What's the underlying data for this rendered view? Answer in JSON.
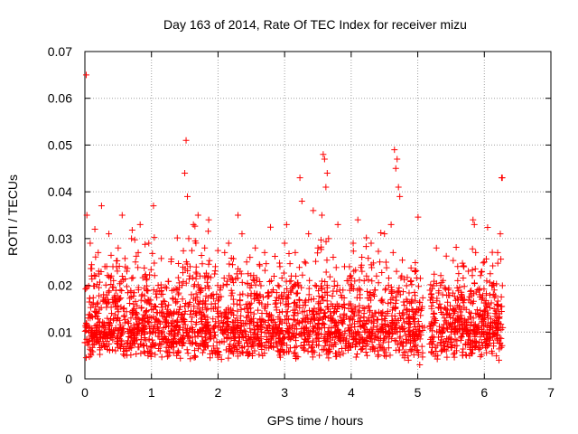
{
  "colors": {
    "series": "#ff0000",
    "axis": "#000000",
    "grid": "#a0a0a0",
    "background": "#ffffff"
  },
  "chart_data": {
    "type": "scatter",
    "title": "Day 163 of 2014, Rate Of TEC Index for receiver mizu",
    "xlabel": "GPS time / hours",
    "ylabel": "ROTI / TECUs",
    "xlim": [
      0,
      7
    ],
    "ylim": [
      0,
      0.07
    ],
    "x_ticks": [
      "0",
      "1",
      "2",
      "3",
      "4",
      "5",
      "6",
      "7"
    ],
    "y_ticks": [
      "0",
      "0.01",
      "0.02",
      "0.03",
      "0.04",
      "0.05",
      "0.06",
      "0.07"
    ],
    "x_tick_values": [
      0,
      1,
      2,
      3,
      4,
      5,
      6,
      7
    ],
    "y_tick_values": [
      0,
      0.01,
      0.02,
      0.03,
      0.04,
      0.05,
      0.06,
      0.07
    ],
    "grid": true,
    "marker": "+",
    "series": [
      {
        "name": "ROTI",
        "points": [
          [
            0.02,
            0.065
          ],
          [
            0.03,
            0.035
          ],
          [
            0.05,
            0.013
          ],
          [
            0.08,
            0.029
          ],
          [
            0.1,
            0.022
          ],
          [
            0.12,
            0.009
          ],
          [
            0.15,
            0.032
          ],
          [
            0.18,
            0.016
          ],
          [
            0.2,
            0.027
          ],
          [
            0.22,
            0.011
          ],
          [
            0.25,
            0.037
          ],
          [
            0.28,
            0.018
          ],
          [
            0.3,
            0.024
          ],
          [
            0.33,
            0.008
          ],
          [
            0.36,
            0.031
          ],
          [
            0.4,
            0.014
          ],
          [
            0.43,
            0.021
          ],
          [
            0.46,
            0.006
          ],
          [
            0.5,
            0.028
          ],
          [
            0.53,
            0.019
          ],
          [
            0.56,
            0.035
          ],
          [
            0.6,
            0.012
          ],
          [
            0.63,
            0.023
          ],
          [
            0.66,
            0.009
          ],
          [
            0.7,
            0.03
          ],
          [
            0.73,
            0.016
          ],
          [
            0.76,
            0.025
          ],
          [
            0.8,
            0.011
          ],
          [
            0.83,
            0.033
          ],
          [
            0.86,
            0.018
          ],
          [
            0.9,
            0.022
          ],
          [
            0.93,
            0.007
          ],
          [
            0.96,
            0.029
          ],
          [
            1.0,
            0.013
          ],
          [
            1.03,
            0.037
          ],
          [
            1.06,
            0.01
          ],
          [
            1.1,
            0.02
          ],
          [
            1.13,
            0.006
          ],
          [
            1.16,
            0.016
          ],
          [
            1.2,
            0.009
          ],
          [
            1.23,
            0.014
          ],
          [
            1.26,
            0.005
          ],
          [
            1.3,
            0.012
          ],
          [
            1.33,
            0.008
          ],
          [
            1.36,
            0.017
          ],
          [
            1.4,
            0.006
          ],
          [
            1.43,
            0.011
          ],
          [
            1.46,
            0.02
          ],
          [
            1.5,
            0.044
          ],
          [
            1.52,
            0.051
          ],
          [
            1.54,
            0.039
          ],
          [
            1.56,
            0.03
          ],
          [
            1.58,
            0.024
          ],
          [
            1.6,
            0.018
          ],
          [
            1.63,
            0.033
          ],
          [
            1.66,
            0.014
          ],
          [
            1.7,
            0.035
          ],
          [
            1.73,
            0.022
          ],
          [
            1.76,
            0.009
          ],
          [
            1.8,
            0.028
          ],
          [
            1.83,
            0.012
          ],
          [
            1.86,
            0.034
          ],
          [
            1.9,
            0.016
          ],
          [
            1.93,
            0.007
          ],
          [
            1.96,
            0.024
          ],
          [
            2.0,
            0.011
          ],
          [
            2.03,
            0.019
          ],
          [
            2.06,
            0.008
          ],
          [
            2.1,
            0.027
          ],
          [
            2.13,
            0.013
          ],
          [
            2.16,
            0.029
          ],
          [
            2.2,
            0.006
          ],
          [
            2.23,
            0.017
          ],
          [
            2.26,
            0.01
          ],
          [
            2.3,
            0.035
          ],
          [
            2.33,
            0.023
          ],
          [
            2.36,
            0.031
          ],
          [
            2.4,
            0.015
          ],
          [
            2.43,
            0.025
          ],
          [
            2.46,
            0.009
          ],
          [
            2.5,
            0.02
          ],
          [
            2.53,
            0.012
          ],
          [
            2.56,
            0.028
          ],
          [
            2.6,
            0.007
          ],
          [
            2.63,
            0.018
          ],
          [
            2.66,
            0.011
          ],
          [
            2.7,
            0.027
          ],
          [
            2.73,
            0.014
          ],
          [
            2.76,
            0.008
          ],
          [
            2.8,
            0.021
          ],
          [
            2.83,
            0.01
          ],
          [
            2.86,
            0.016
          ],
          [
            2.9,
            0.006
          ],
          [
            2.93,
            0.024
          ],
          [
            2.96,
            0.012
          ],
          [
            3.0,
            0.029
          ],
          [
            3.03,
            0.033
          ],
          [
            3.06,
            0.018
          ],
          [
            3.1,
            0.022
          ],
          [
            3.13,
            0.009
          ],
          [
            3.16,
            0.027
          ],
          [
            3.2,
            0.014
          ],
          [
            3.23,
            0.043
          ],
          [
            3.26,
            0.038
          ],
          [
            3.3,
            0.025
          ],
          [
            3.33,
            0.011
          ],
          [
            3.36,
            0.031
          ],
          [
            3.4,
            0.017
          ],
          [
            3.43,
            0.036
          ],
          [
            3.46,
            0.02
          ],
          [
            3.5,
            0.028
          ],
          [
            3.53,
            0.013
          ],
          [
            3.56,
            0.035
          ],
          [
            3.58,
            0.048
          ],
          [
            3.6,
            0.047
          ],
          [
            3.62,
            0.041
          ],
          [
            3.64,
            0.044
          ],
          [
            3.66,
            0.03
          ],
          [
            3.7,
            0.016
          ],
          [
            3.73,
            0.026
          ],
          [
            3.76,
            0.009
          ],
          [
            3.8,
            0.033
          ],
          [
            3.83,
            0.019
          ],
          [
            3.86,
            0.012
          ],
          [
            3.9,
            0.024
          ],
          [
            3.93,
            0.007
          ],
          [
            3.96,
            0.021
          ],
          [
            4.0,
            0.015
          ],
          [
            4.03,
            0.029
          ],
          [
            4.06,
            0.01
          ],
          [
            4.1,
            0.034
          ],
          [
            4.13,
            0.018
          ],
          [
            4.16,
            0.026
          ],
          [
            4.2,
            0.008
          ],
          [
            4.23,
            0.022
          ],
          [
            4.26,
            0.013
          ],
          [
            4.3,
            0.029
          ],
          [
            4.33,
            0.011
          ],
          [
            4.36,
            0.019
          ],
          [
            4.4,
            0.006
          ],
          [
            4.43,
            0.025
          ],
          [
            4.46,
            0.014
          ],
          [
            4.5,
            0.031
          ],
          [
            4.53,
            0.009
          ],
          [
            4.56,
            0.02
          ],
          [
            4.6,
            0.033
          ],
          [
            4.63,
            0.027
          ],
          [
            4.65,
            0.049
          ],
          [
            4.67,
            0.045
          ],
          [
            4.69,
            0.047
          ],
          [
            4.71,
            0.041
          ],
          [
            4.73,
            0.039
          ],
          [
            4.76,
            0.022
          ],
          [
            4.8,
            0.012
          ],
          [
            4.83,
            0.017
          ],
          [
            4.86,
            0.004
          ],
          [
            4.9,
            0.021
          ],
          [
            4.93,
            0.013
          ],
          [
            4.96,
            0.023
          ],
          [
            5.0,
            0.009
          ],
          [
            5.03,
            0.003
          ],
          [
            5.06,
            0.015
          ],
          [
            5.1,
            0.011
          ],
          [
            5.2,
            0.018
          ],
          [
            5.23,
            0.008
          ],
          [
            5.26,
            0.012
          ],
          [
            5.28,
            0.028
          ],
          [
            5.3,
            0.005
          ],
          [
            5.33,
            0.016
          ],
          [
            5.36,
            0.009
          ],
          [
            5.4,
            0.013
          ],
          [
            5.43,
            0.006
          ],
          [
            5.46,
            0.019
          ],
          [
            5.5,
            0.011
          ],
          [
            5.53,
            0.015
          ],
          [
            5.56,
            0.007
          ],
          [
            5.6,
            0.021
          ],
          [
            5.63,
            0.013
          ],
          [
            5.66,
            0.009
          ],
          [
            5.7,
            0.017
          ],
          [
            5.73,
            0.005
          ],
          [
            5.76,
            0.023
          ],
          [
            5.8,
            0.014
          ],
          [
            5.83,
            0.034
          ],
          [
            5.85,
            0.033
          ],
          [
            5.87,
            0.027
          ],
          [
            5.9,
            0.01
          ],
          [
            5.93,
            0.018
          ],
          [
            5.96,
            0.012
          ],
          [
            6.0,
            0.025
          ],
          [
            6.03,
            0.008
          ],
          [
            6.06,
            0.016
          ],
          [
            6.1,
            0.011
          ],
          [
            6.13,
            0.02
          ],
          [
            6.16,
            0.014
          ],
          [
            6.2,
            0.027
          ],
          [
            6.22,
            0.004
          ],
          [
            6.24,
            0.031
          ],
          [
            6.26,
            0.043
          ],
          [
            6.27,
            0.043
          ]
        ]
      }
    ],
    "density_note": "dense scatter of ROTI values concentrated between 0.005 and 0.02 across 0-6.3 h with gap near 5.1-5.2 h"
  }
}
